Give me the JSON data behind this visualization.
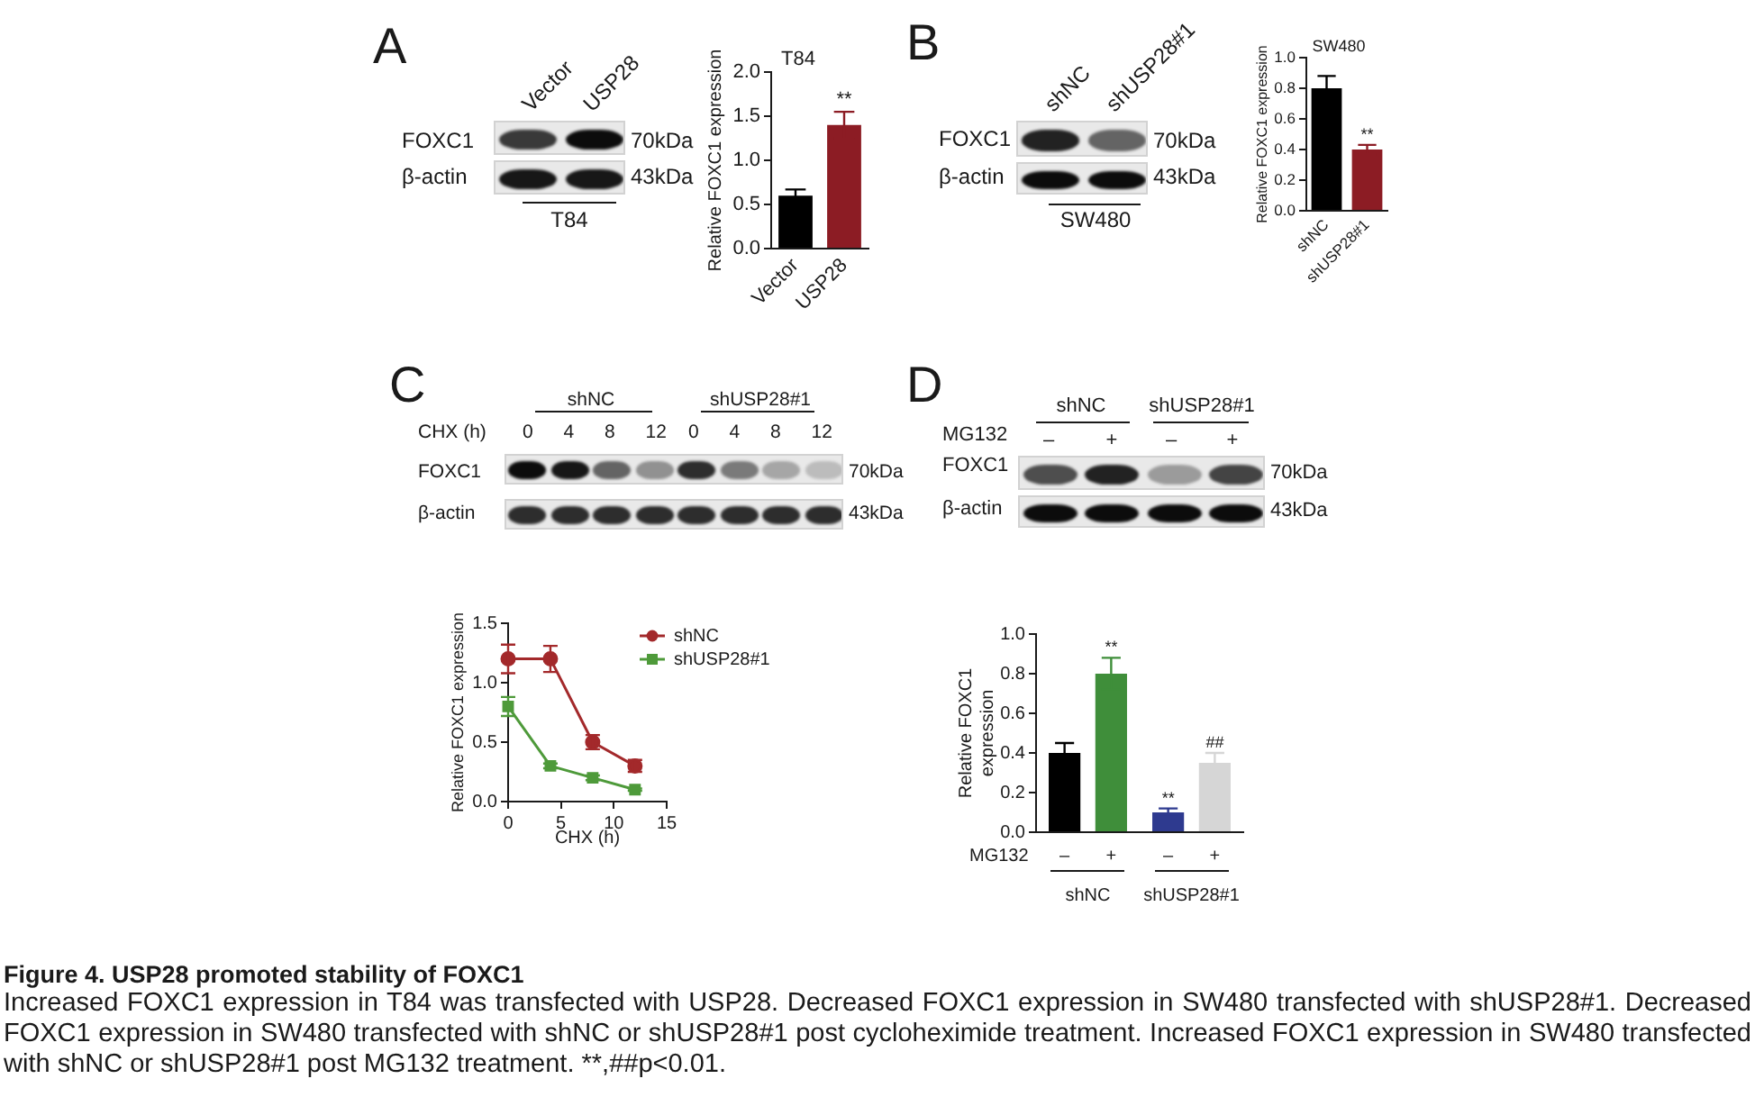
{
  "chart_data": [
    {
      "type": "other",
      "title": "A",
      "annotations": [
        "Vector",
        "USP28",
        "FOXC1",
        "β-actin",
        "70kDa",
        "43kDa",
        "T84"
      ]
    },
    {
      "type": "bar",
      "title": "T84",
      "ylabel": "Relative FOXC1 expression",
      "categories": [
        "Vector",
        "USP28"
      ],
      "values": [
        0.6,
        1.4
      ],
      "colors": [
        "#000000",
        "#8c1c24"
      ],
      "errors": [
        0.07,
        0.15
      ],
      "value_labels": [
        null,
        "**"
      ],
      "ylim": [
        0,
        2
      ],
      "yticks": [
        {
          "value": 0,
          "label": "0.0"
        },
        0.5,
        {
          "value": 1,
          "label": "1.0"
        },
        1.5,
        {
          "value": 2,
          "label": "2.0"
        }
      ]
    },
    {
      "type": "other",
      "title": "B",
      "annotations": [
        "shNC",
        "shUSP28#1",
        "FOXC1",
        "β-actin",
        "70kDa",
        "43kDa",
        "SW480"
      ]
    },
    {
      "type": "bar",
      "title": "SW480",
      "ylabel": "Relative FOXC1 expression",
      "categories": [
        "shNC",
        "shUSP28#1"
      ],
      "values": [
        0.8,
        0.4
      ],
      "colors": [
        "#000000",
        "#8c1c24"
      ],
      "errors": [
        0.08,
        0.03
      ],
      "value_labels": [
        null,
        "**"
      ],
      "ylim": [
        0,
        1
      ],
      "yticks": [
        {
          "value": 0,
          "label": "0.0"
        },
        0.2,
        0.4,
        0.6,
        0.8,
        {
          "value": 1,
          "label": "1.0"
        }
      ]
    },
    {
      "type": "other",
      "title": "C",
      "annotations": [
        "shNC",
        "shUSP28#1",
        "CHX (h)",
        "0 4 8 12",
        "0 4 8 12",
        "FOXC1",
        "β-actin",
        "70kDa",
        "43kDa"
      ]
    },
    {
      "type": "other",
      "title": "D",
      "annotations": [
        "shNC",
        "shUSP28#1",
        "MG132",
        "–",
        "+",
        "–",
        "+",
        "FOXC1",
        "β-actin",
        "70kDa",
        "43kDa"
      ]
    },
    {
      "type": "line",
      "xlabel": "CHX (h)",
      "ylabel": "Relative FOXC1 expression",
      "x": [
        0,
        4,
        8,
        12
      ],
      "series": [
        {
          "name": "shNC",
          "color": "#a3292b",
          "marker": "circle",
          "values": [
            1.2,
            1.2,
            0.5,
            0.3
          ],
          "errors": [
            0.12,
            0.11,
            0.06,
            0.05
          ]
        },
        {
          "name": "shUSP28#1",
          "color": "#4e9a3a",
          "marker": "square",
          "values": [
            0.8,
            0.3,
            0.2,
            0.1
          ],
          "errors": [
            0.08,
            0.02,
            0.02,
            0.01
          ]
        }
      ],
      "xlim": [
        0,
        15
      ],
      "xticks": [
        0,
        5,
        10,
        15
      ],
      "ylim": [
        0,
        1.5
      ],
      "yticks": [
        {
          "value": 0,
          "label": "0.0"
        },
        0.5,
        {
          "value": 1,
          "label": "1.0"
        },
        1.5
      ],
      "legend": "top right"
    },
    {
      "type": "bar",
      "ylabel": "Relative FOXC1 expression",
      "categories": [
        "shNC",
        "shUSP28#1"
      ],
      "series": [
        {
          "name": "–",
          "colors": [
            "#000000",
            "#2e3a8f"
          ],
          "values": [
            0.4,
            0.1
          ],
          "errors": [
            0.05,
            0.02
          ],
          "value_labels": [
            null,
            "**"
          ]
        },
        {
          "name": "+",
          "colors": [
            "#3f8e3a",
            "#d6d6d6"
          ],
          "values": [
            0.8,
            0.35
          ],
          "errors": [
            0.08,
            0.05
          ],
          "value_labels": [
            "**",
            "##"
          ]
        }
      ],
      "annotations": [
        "MG132"
      ],
      "ylim": [
        0,
        1
      ],
      "yticks": [
        {
          "value": 0,
          "label": "0.0"
        },
        0.2,
        0.4,
        0.6,
        0.8,
        {
          "value": 1,
          "label": "1.0"
        }
      ]
    },
    {
      "type": "other",
      "title": "Figure 4. USP28 promoted stability of FOXC1",
      "annotations": [
        "Increased FOXC1 expression in T84 was transfected with USP28. Decreased FOXC1 expression in SW480 transfected with shUSP28#1. Decreased FOXC1 expression in SW480 transfected with shNC or shUSP28#1 post cycloheximide treatment. Increased FOXC1 expression in SW480 transfected with shNC or shUSP28#1 post MG132 treatment. **,##p<0.01."
      ]
    }
  ]
}
